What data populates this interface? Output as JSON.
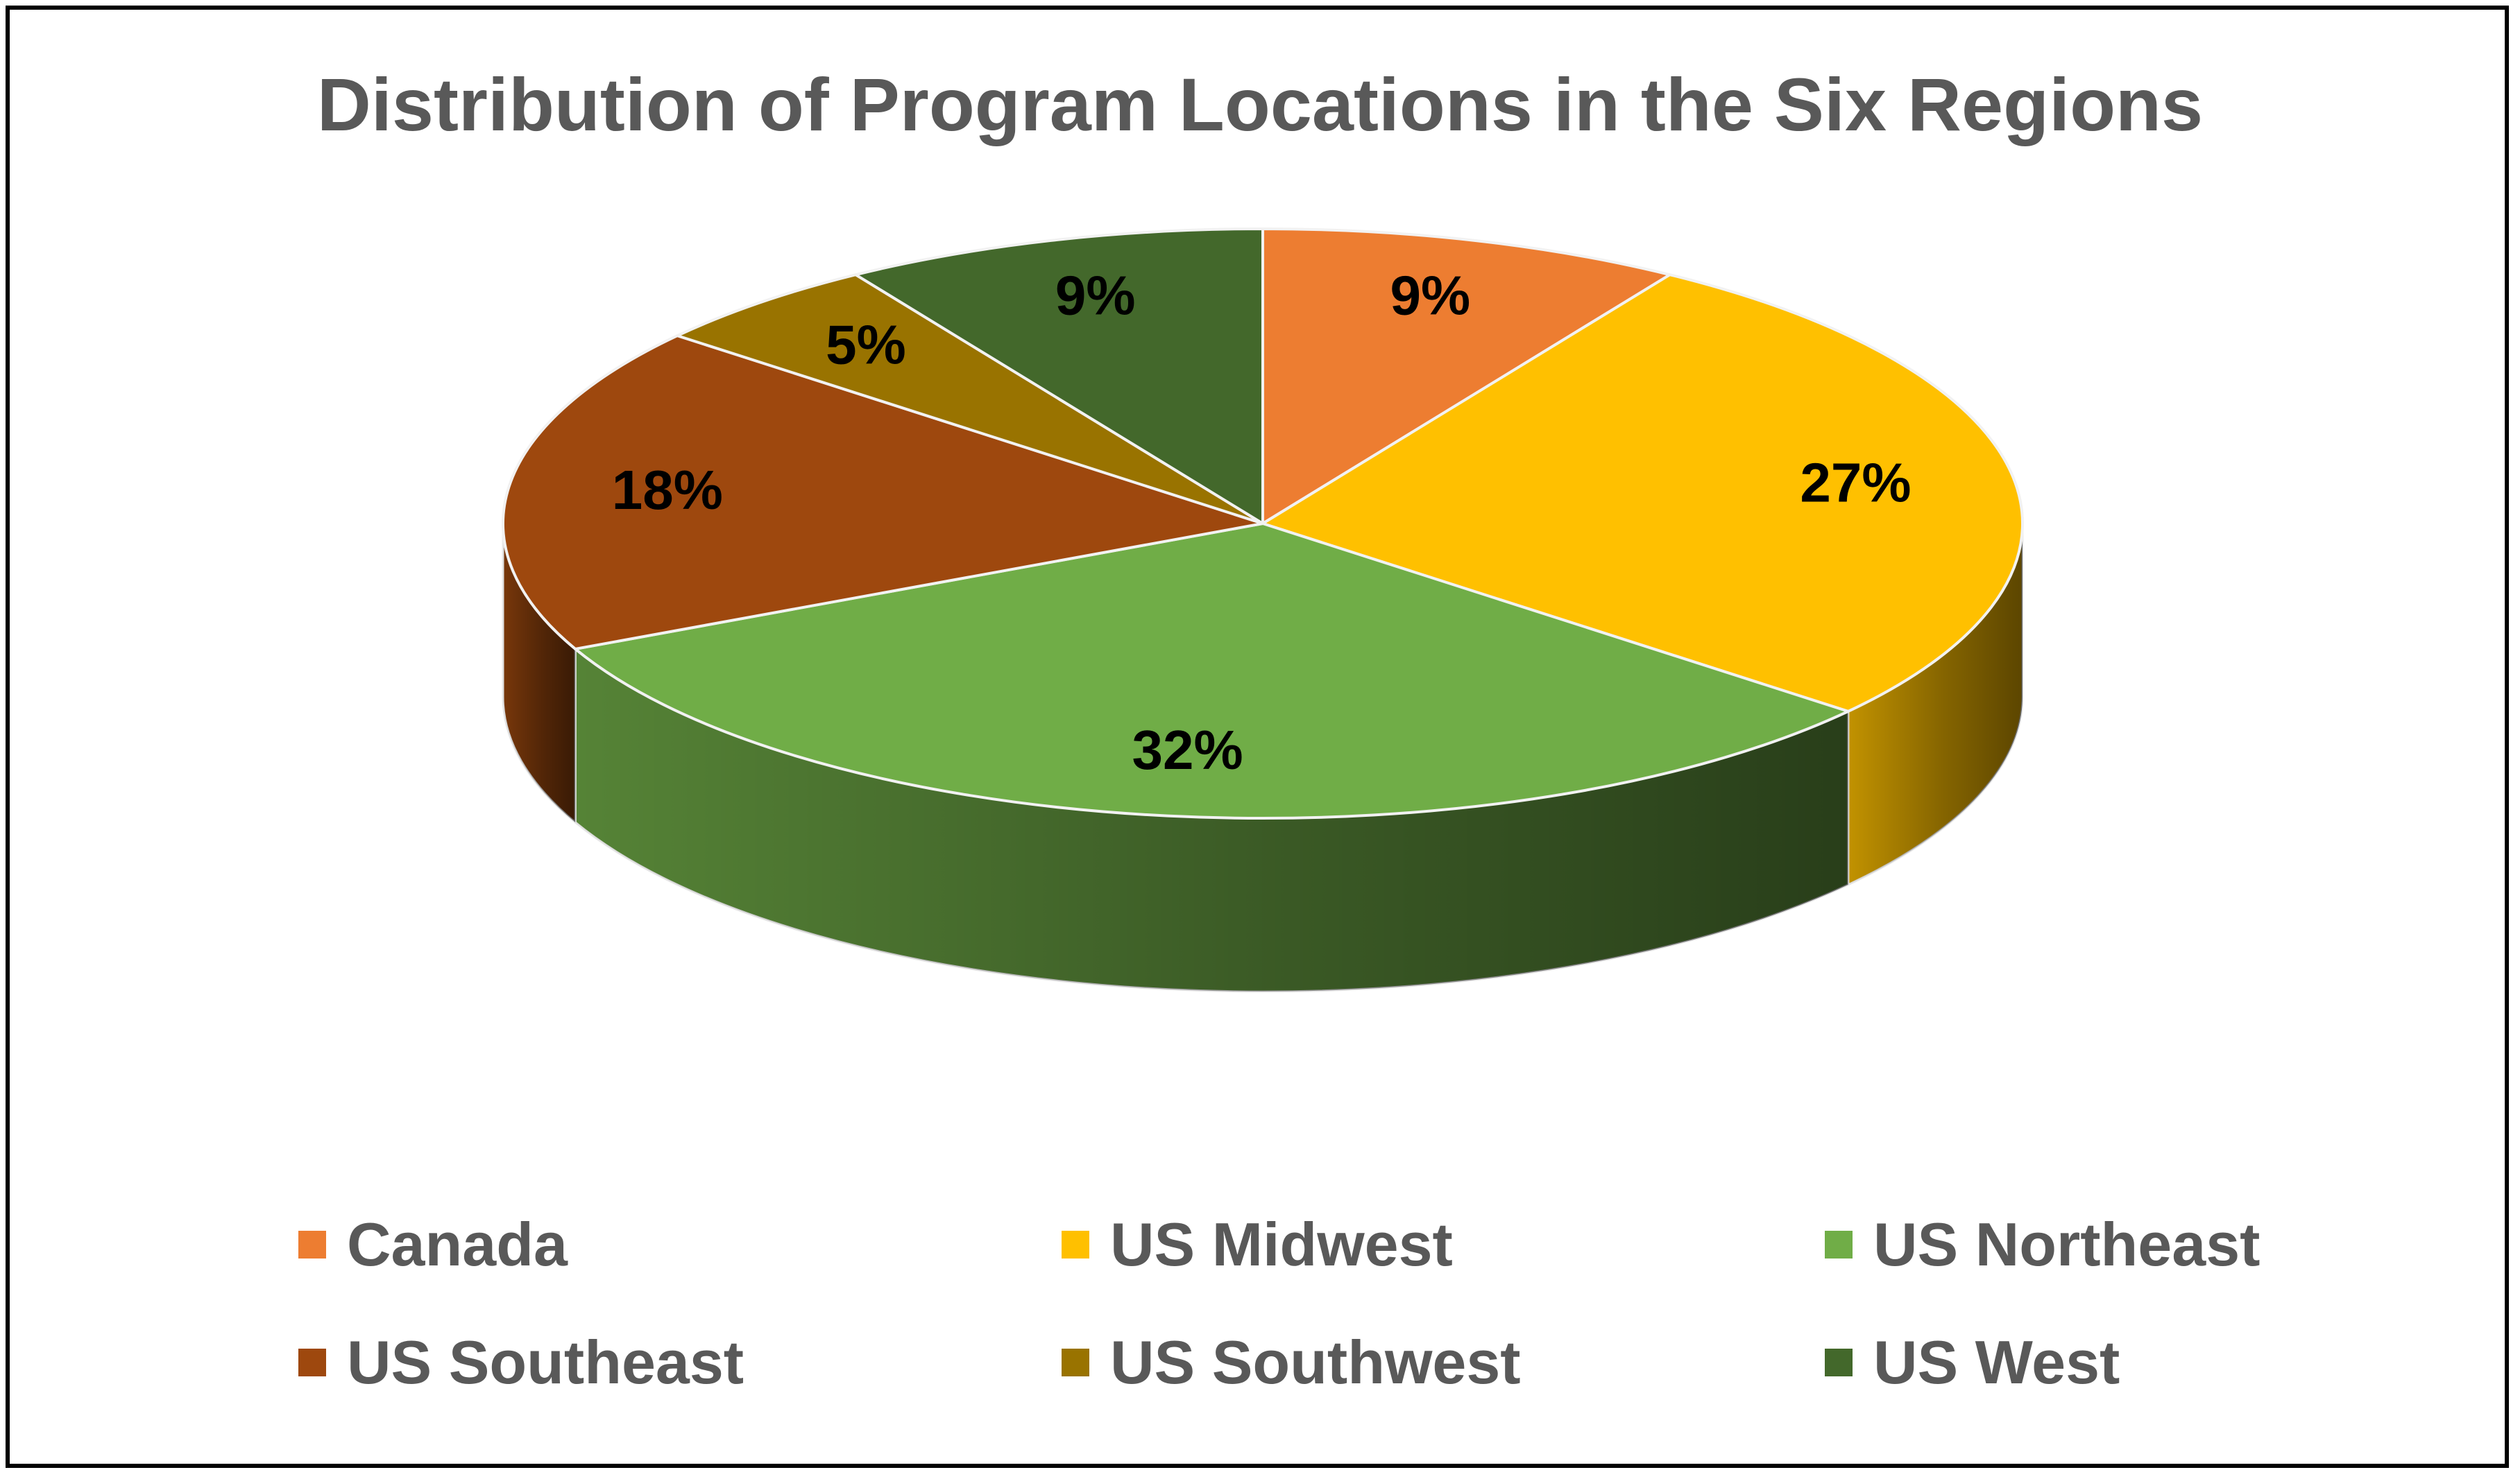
{
  "chart_data": {
    "type": "pie",
    "title": "Distribution of Program Locations in the Six Regions",
    "categories": [
      "Canada",
      "US Midwest",
      "US Northeast",
      "US Southeast",
      "US Southwest",
      "US West"
    ],
    "values": [
      9,
      27,
      32,
      18,
      5,
      9
    ],
    "data_labels": [
      "9%",
      "27%",
      "32%",
      "18%",
      "5%",
      "9%"
    ],
    "colors": [
      "#ED7D31",
      "#FFC000",
      "#70AD47",
      "#9E480E",
      "#997300",
      "#43682B"
    ],
    "legend_position": "bottom",
    "style": "3d"
  }
}
